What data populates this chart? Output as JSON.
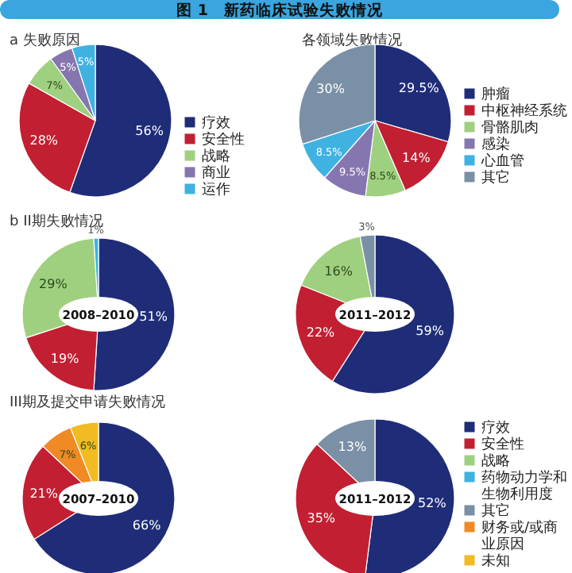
{
  "chart_data": [
    {
      "type": "pie",
      "title": "图 1　新药临床试验失败情况",
      "subtitle": "a 失败原因",
      "categories": [
        "疗效",
        "安全性",
        "战略",
        "商业",
        "运作"
      ],
      "values": [
        56,
        28,
        7,
        5,
        5
      ],
      "value_labels": [
        "56%",
        "28%",
        "7%",
        "5%",
        "5%"
      ],
      "colors": [
        "#1f2d78",
        "#c21f32",
        "#9fd07f",
        "#8676b0",
        "#3fb2e2"
      ],
      "legend": "right"
    },
    {
      "type": "pie",
      "title": "各领域失败情况",
      "categories": [
        "肿瘤",
        "中枢神经系统",
        "骨骼肌肉",
        "感染",
        "心血管",
        "其它"
      ],
      "values": [
        29.5,
        14,
        8.5,
        9.5,
        8.5,
        30
      ],
      "value_labels": [
        "29.5%",
        "14%",
        "8.5%",
        "9.5%",
        "8.5%",
        "30%"
      ],
      "colors": [
        "#1f2d78",
        "#c21f32",
        "#9fd07f",
        "#8676b0",
        "#3fb2e2",
        "#7a90a6"
      ],
      "legend": "right"
    },
    {
      "type": "pie",
      "title": "b II期失败情况",
      "annotations": [
        "2008–2010"
      ],
      "categories": [
        null,
        null,
        null,
        null
      ],
      "values": [
        51,
        19,
        29,
        1
      ],
      "value_labels": [
        "51%",
        "19%",
        "29%",
        "1%"
      ],
      "colors": [
        "#1f2d78",
        "#c21f32",
        "#9fd07f",
        "#3fb2e2"
      ]
    },
    {
      "type": "pie",
      "annotations": [
        "2011–2012"
      ],
      "categories": [
        null,
        null,
        null,
        null
      ],
      "values": [
        59,
        22,
        16,
        3
      ],
      "value_labels": [
        "59%",
        "22%",
        "16%",
        "3%"
      ],
      "colors": [
        "#1f2d78",
        "#c21f32",
        "#9fd07f",
        "#7a90a6"
      ]
    },
    {
      "type": "pie",
      "title": "III期及提交申请失败情况",
      "annotations": [
        "2007–2010"
      ],
      "categories": [
        null,
        null,
        null,
        null
      ],
      "values": [
        66,
        21,
        7,
        6
      ],
      "value_labels": [
        "66%",
        "21%",
        "7%",
        "6%"
      ],
      "colors": [
        "#1f2d78",
        "#c21f32",
        "#f08a24",
        "#f2bb22"
      ]
    },
    {
      "type": "pie",
      "annotations": [
        "2011–2012"
      ],
      "categories": [
        "疗效",
        "安全性",
        "战略",
        "药物动力学和生物利用度",
        "其它",
        "财务或/或商业原因",
        "未知"
      ],
      "values": [
        52,
        35,
        null,
        null,
        13,
        null,
        null
      ],
      "value_labels": [
        "52%",
        "35%",
        null,
        null,
        "13%",
        null,
        null
      ],
      "colors": [
        "#1f2d78",
        "#c21f32",
        "#9fd07f",
        "#3fb2e2",
        "#7a90a6",
        "#f08a24",
        "#f2bb22"
      ],
      "legend": "right"
    }
  ]
}
